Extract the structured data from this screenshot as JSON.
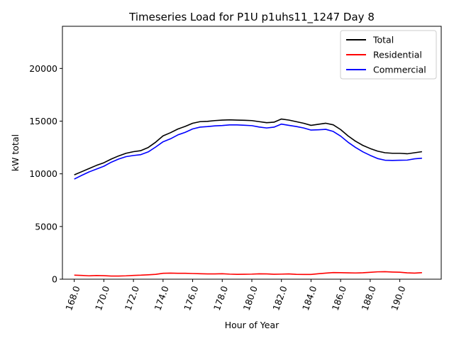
{
  "chart_data": {
    "type": "line",
    "title": "Timeseries Load for P1U p1uhs11_1247  Day 8",
    "xlabel": "Hour of Year",
    "ylabel": "kW total",
    "xlim": [
      167.2,
      192.8
    ],
    "ylim": [
      0,
      24000
    ],
    "xticks": [
      168,
      170,
      172,
      174,
      176,
      178,
      180,
      182,
      184,
      186,
      188,
      190
    ],
    "xtick_labels": [
      "168.0",
      "170.0",
      "172.0",
      "174.0",
      "176.0",
      "178.0",
      "180.0",
      "182.0",
      "184.0",
      "186.0",
      "188.0",
      "190.0"
    ],
    "yticks": [
      0,
      5000,
      10000,
      15000,
      20000
    ],
    "ytick_labels": [
      "0",
      "5000",
      "10000",
      "15000",
      "20000"
    ],
    "legend_position": "top-right",
    "x": [
      168.0,
      168.5,
      169.0,
      169.5,
      170.0,
      170.5,
      171.0,
      171.5,
      172.0,
      172.5,
      173.0,
      173.5,
      174.0,
      174.5,
      175.0,
      175.5,
      176.0,
      176.5,
      177.0,
      177.5,
      178.0,
      178.5,
      179.0,
      179.5,
      180.0,
      180.5,
      181.0,
      181.5,
      182.0,
      182.5,
      183.0,
      183.5,
      184.0,
      184.5,
      185.0,
      185.5,
      186.0,
      186.5,
      187.0,
      187.5,
      188.0,
      188.5,
      189.0,
      189.5,
      190.0,
      190.5,
      191.0,
      191.5
    ],
    "series": [
      {
        "name": "Total",
        "color": "#000000",
        "values": [
          9900,
          10200,
          10500,
          10800,
          11050,
          11400,
          11700,
          11950,
          12100,
          12200,
          12500,
          13000,
          13600,
          13900,
          14250,
          14500,
          14800,
          14950,
          14980,
          15050,
          15100,
          15120,
          15100,
          15080,
          15050,
          14950,
          14850,
          14900,
          15200,
          15100,
          14950,
          14800,
          14600,
          14700,
          14800,
          14650,
          14200,
          13600,
          13100,
          12700,
          12400,
          12150,
          12000,
          11950,
          11950,
          11900,
          12000,
          12100
        ]
      },
      {
        "name": "Residential",
        "color": "#ff0000",
        "values": [
          380,
          360,
          320,
          350,
          330,
          300,
          300,
          320,
          360,
          380,
          420,
          460,
          560,
          580,
          560,
          560,
          540,
          520,
          500,
          500,
          520,
          480,
          460,
          470,
          480,
          510,
          500,
          470,
          480,
          500,
          460,
          450,
          450,
          520,
          580,
          630,
          620,
          600,
          590,
          610,
          650,
          700,
          710,
          680,
          660,
          600,
          580,
          620
        ]
      },
      {
        "name": "Commercial",
        "color": "#0000ff",
        "values": [
          9500,
          9850,
          10180,
          10450,
          10720,
          11100,
          11400,
          11630,
          11740,
          11820,
          12080,
          12540,
          13040,
          13320,
          13690,
          13940,
          14260,
          14430,
          14480,
          14550,
          14580,
          14640,
          14640,
          14610,
          14570,
          14440,
          14350,
          14430,
          14720,
          14600,
          14490,
          14350,
          14150,
          14180,
          14220,
          14020,
          13580,
          13000,
          12510,
          12090,
          11750,
          11450,
          11290,
          11270,
          11290,
          11300,
          11420,
          11480
        ]
      }
    ]
  }
}
